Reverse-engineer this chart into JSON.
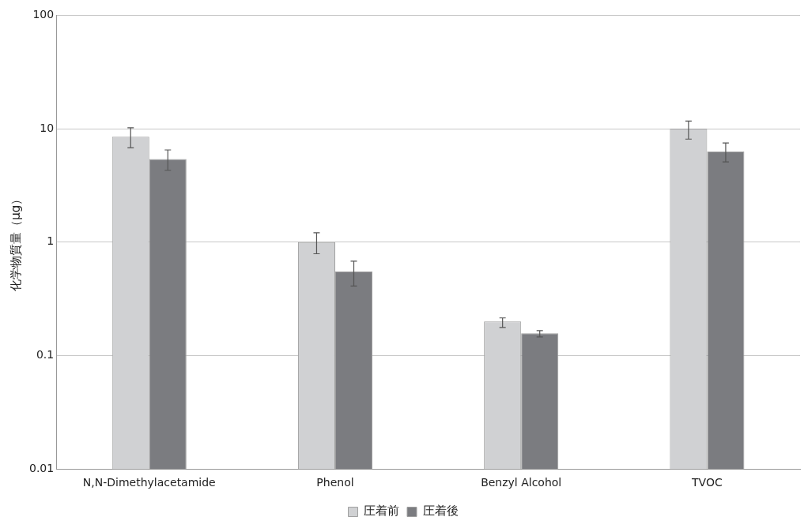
{
  "chart_data": {
    "type": "bar",
    "ylabel": "化学物質量（μg）",
    "categories": [
      "N,N-Dimethylacetamide",
      "Phenol",
      "Benzyl Alcohol",
      "TVOC"
    ],
    "series": [
      {
        "name": "圧着前",
        "color": "#d0d1d3",
        "values": [
          8.5,
          1.0,
          0.2,
          10
        ],
        "errors": [
          [
            6.8,
            10.2
          ],
          [
            0.79,
            1.21
          ],
          [
            0.177,
            0.215
          ],
          [
            8.1,
            11.7
          ]
        ]
      },
      {
        "name": "圧着後",
        "color": "#7b7c80",
        "values": [
          5.4,
          0.55,
          0.157,
          6.3
        ],
        "errors": [
          [
            4.3,
            6.5
          ],
          [
            0.41,
            0.68
          ],
          [
            0.146,
            0.166
          ],
          [
            5.1,
            7.5
          ]
        ]
      }
    ],
    "log": "y",
    "ylim": [
      0.01,
      100
    ],
    "yticks": [
      0.01,
      0.1,
      1,
      10,
      100
    ],
    "grid": "y",
    "legend": "bottom"
  }
}
